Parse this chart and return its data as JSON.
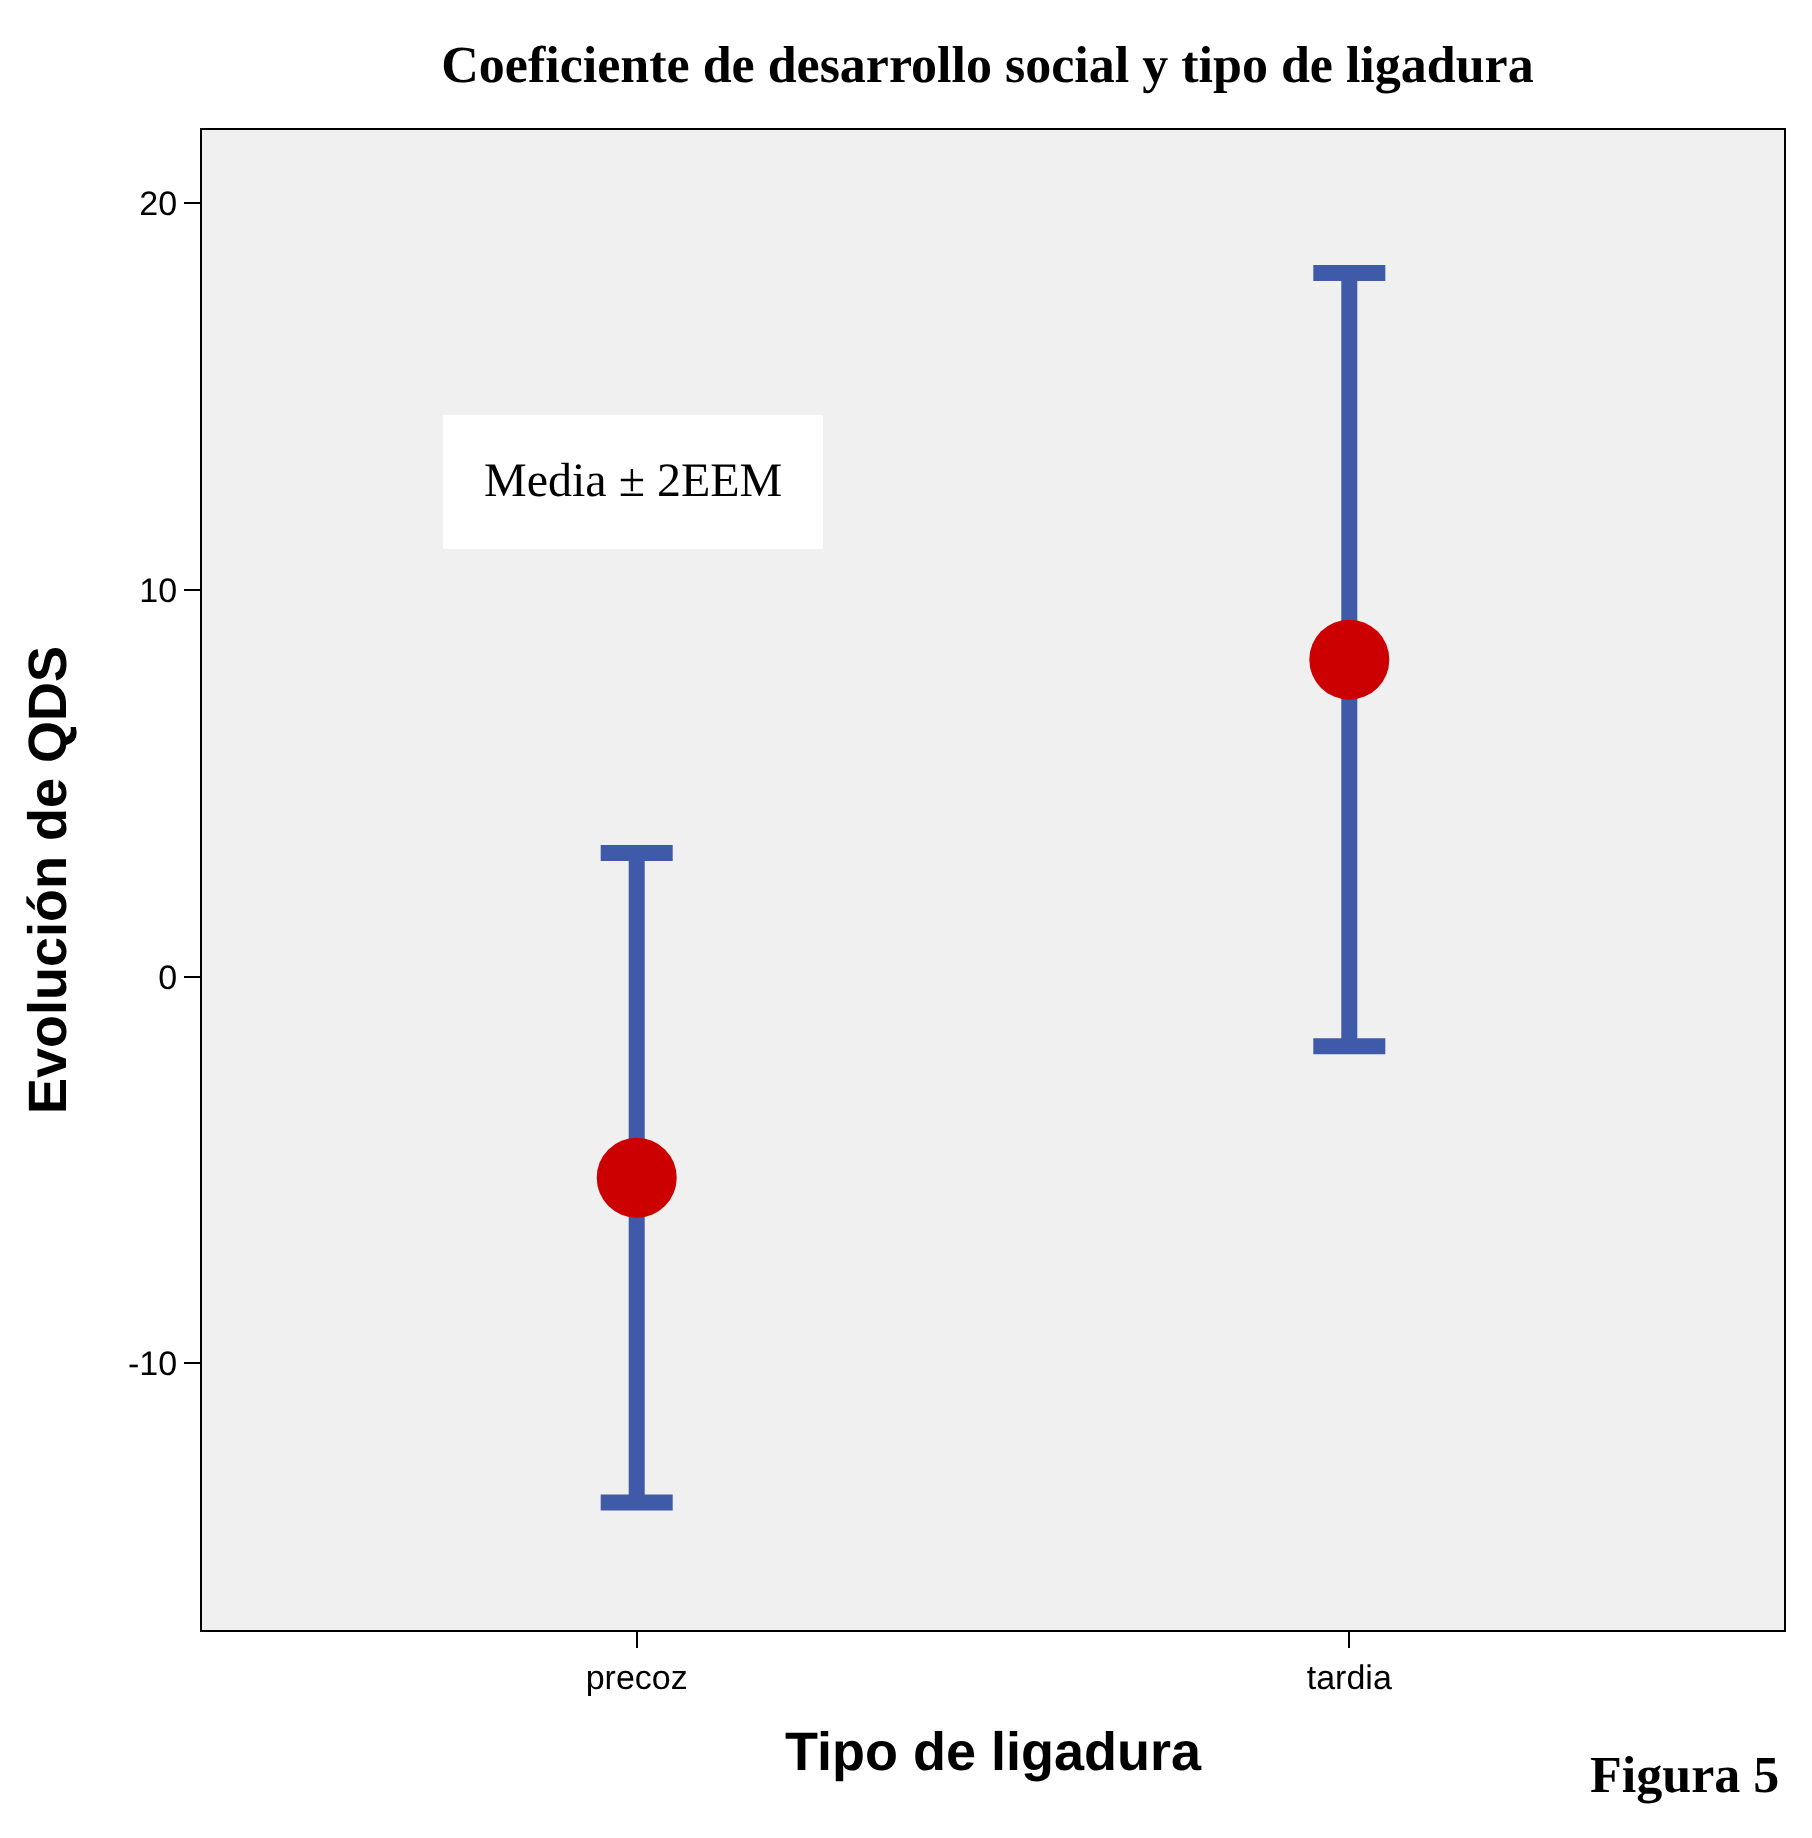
{
  "chart_data": {
    "type": "scatter",
    "title": "Coeficiente de desarrollo social y tipo de ligadura",
    "xlabel": "Tipo de ligadura",
    "ylabel": "Evolución de QDS",
    "categories": [
      "precoz",
      "tardia"
    ],
    "values": [
      -5.2,
      8.2
    ],
    "errors": [
      8.4,
      10.0
    ],
    "color": "#cc0000",
    "marker": "circle",
    "ylim": [
      -16.9,
      21.9
    ],
    "yticks": [
      -10,
      0,
      10,
      20
    ],
    "grid": false,
    "annotations": [
      "Media ± 2EEM",
      "Figura 5"
    ]
  }
}
